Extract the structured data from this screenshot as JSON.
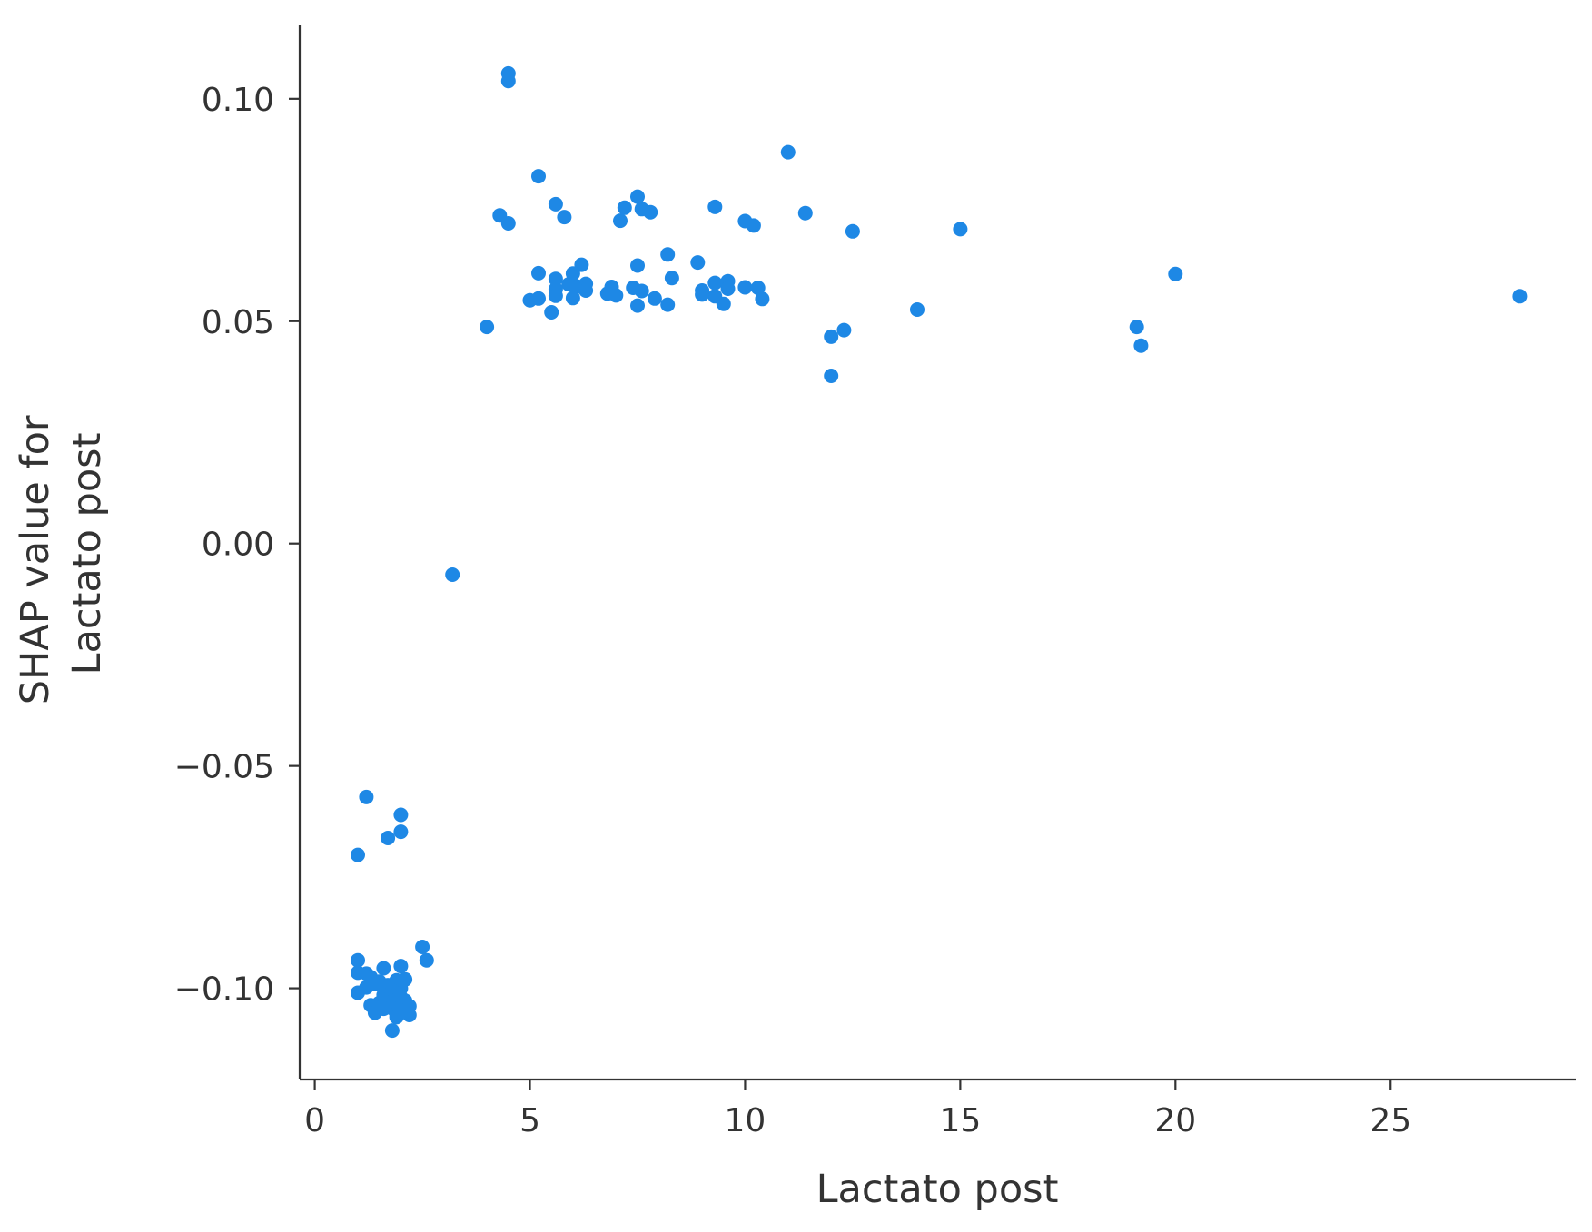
{
  "chart_data": {
    "type": "scatter",
    "xlabel": "Lactato post",
    "ylabel": [
      "SHAP value for",
      "Lactato post"
    ],
    "xlim": [
      -0.35,
      29.3
    ],
    "ylim": [
      -0.1205,
      0.1165
    ],
    "xticks": [
      0,
      5,
      10,
      15,
      20,
      25
    ],
    "xtick_labels": [
      "0",
      "5",
      "10",
      "15",
      "20",
      "25"
    ],
    "yticks": [
      0.1,
      0.05,
      0.0,
      -0.05,
      -0.1
    ],
    "ytick_labels": [
      "0.10",
      "0.05",
      "0.00",
      "−0.05",
      "−0.10"
    ],
    "grid": false,
    "point_color": "#1e88e5",
    "axis_color": "#333333",
    "points": [
      {
        "x": 4.5,
        "y": 0.1057
      },
      {
        "x": 4.5,
        "y": 0.104
      },
      {
        "x": 11.0,
        "y": 0.088
      },
      {
        "x": 5.2,
        "y": 0.0826
      },
      {
        "x": 7.5,
        "y": 0.078
      },
      {
        "x": 5.6,
        "y": 0.0763
      },
      {
        "x": 7.2,
        "y": 0.0755
      },
      {
        "x": 9.3,
        "y": 0.0757
      },
      {
        "x": 7.6,
        "y": 0.0752
      },
      {
        "x": 7.8,
        "y": 0.0745
      },
      {
        "x": 11.4,
        "y": 0.0743
      },
      {
        "x": 4.3,
        "y": 0.0738
      },
      {
        "x": 5.8,
        "y": 0.0734
      },
      {
        "x": 7.1,
        "y": 0.0726
      },
      {
        "x": 10.0,
        "y": 0.0725
      },
      {
        "x": 4.5,
        "y": 0.072
      },
      {
        "x": 10.2,
        "y": 0.0715
      },
      {
        "x": 15.0,
        "y": 0.0707
      },
      {
        "x": 12.5,
        "y": 0.0702
      },
      {
        "x": 8.2,
        "y": 0.065
      },
      {
        "x": 8.9,
        "y": 0.0632
      },
      {
        "x": 6.2,
        "y": 0.0627
      },
      {
        "x": 7.5,
        "y": 0.0625
      },
      {
        "x": 5.2,
        "y": 0.0608
      },
      {
        "x": 6.0,
        "y": 0.0607
      },
      {
        "x": 20.0,
        "y": 0.0606
      },
      {
        "x": 5.6,
        "y": 0.0595
      },
      {
        "x": 8.3,
        "y": 0.0597
      },
      {
        "x": 9.6,
        "y": 0.059
      },
      {
        "x": 9.3,
        "y": 0.0586
      },
      {
        "x": 6.3,
        "y": 0.0584
      },
      {
        "x": 5.9,
        "y": 0.0583
      },
      {
        "x": 6.1,
        "y": 0.0578
      },
      {
        "x": 6.9,
        "y": 0.0577
      },
      {
        "x": 7.4,
        "y": 0.0575
      },
      {
        "x": 10.0,
        "y": 0.0576
      },
      {
        "x": 10.3,
        "y": 0.0575
      },
      {
        "x": 5.6,
        "y": 0.0572
      },
      {
        "x": 9.6,
        "y": 0.0573
      },
      {
        "x": 6.3,
        "y": 0.0569
      },
      {
        "x": 9.0,
        "y": 0.0569
      },
      {
        "x": 7.6,
        "y": 0.0568
      },
      {
        "x": 6.8,
        "y": 0.0562
      },
      {
        "x": 9.0,
        "y": 0.056
      },
      {
        "x": 7.0,
        "y": 0.0558
      },
      {
        "x": 5.6,
        "y": 0.0557
      },
      {
        "x": 28.0,
        "y": 0.0556
      },
      {
        "x": 9.3,
        "y": 0.0556
      },
      {
        "x": 6.0,
        "y": 0.0552
      },
      {
        "x": 7.9,
        "y": 0.0551
      },
      {
        "x": 5.2,
        "y": 0.0551
      },
      {
        "x": 10.4,
        "y": 0.055
      },
      {
        "x": 5.0,
        "y": 0.0547
      },
      {
        "x": 9.5,
        "y": 0.0539
      },
      {
        "x": 8.2,
        "y": 0.0537
      },
      {
        "x": 7.5,
        "y": 0.0535
      },
      {
        "x": 14.0,
        "y": 0.0526
      },
      {
        "x": 5.5,
        "y": 0.052
      },
      {
        "x": 4.0,
        "y": 0.0487
      },
      {
        "x": 19.1,
        "y": 0.0487
      },
      {
        "x": 12.3,
        "y": 0.048
      },
      {
        "x": 12.0,
        "y": 0.0465
      },
      {
        "x": 19.2,
        "y": 0.0445
      },
      {
        "x": 12.0,
        "y": 0.0377
      },
      {
        "x": 3.2,
        "y": -0.007
      },
      {
        "x": 1.2,
        "y": -0.057
      },
      {
        "x": 2.0,
        "y": -0.061
      },
      {
        "x": 2.0,
        "y": -0.0648
      },
      {
        "x": 1.7,
        "y": -0.0662
      },
      {
        "x": 1.0,
        "y": -0.07
      },
      {
        "x": 2.5,
        "y": -0.0907
      },
      {
        "x": 2.6,
        "y": -0.0937
      },
      {
        "x": 1.0,
        "y": -0.0937
      },
      {
        "x": 2.0,
        "y": -0.095
      },
      {
        "x": 1.6,
        "y": -0.0955
      },
      {
        "x": 1.0,
        "y": -0.0965
      },
      {
        "x": 1.2,
        "y": -0.0967
      },
      {
        "x": 1.3,
        "y": -0.0975
      },
      {
        "x": 2.1,
        "y": -0.098
      },
      {
        "x": 1.9,
        "y": -0.0982
      },
      {
        "x": 1.5,
        "y": -0.0985
      },
      {
        "x": 1.4,
        "y": -0.099
      },
      {
        "x": 1.7,
        "y": -0.0993
      },
      {
        "x": 1.2,
        "y": -0.0998
      },
      {
        "x": 2.0,
        "y": -0.1
      },
      {
        "x": 1.8,
        "y": -0.1005
      },
      {
        "x": 1.0,
        "y": -0.101
      },
      {
        "x": 1.9,
        "y": -0.1012
      },
      {
        "x": 1.6,
        "y": -0.1015
      },
      {
        "x": 2.0,
        "y": -0.102
      },
      {
        "x": 1.7,
        "y": -0.1025
      },
      {
        "x": 2.1,
        "y": -0.1028
      },
      {
        "x": 1.8,
        "y": -0.103
      },
      {
        "x": 1.5,
        "y": -0.1033
      },
      {
        "x": 1.9,
        "y": -0.1036
      },
      {
        "x": 1.3,
        "y": -0.1038
      },
      {
        "x": 2.2,
        "y": -0.104
      },
      {
        "x": 1.4,
        "y": -0.1043
      },
      {
        "x": 1.8,
        "y": -0.1045
      },
      {
        "x": 1.6,
        "y": -0.1046
      },
      {
        "x": 2.1,
        "y": -0.105
      },
      {
        "x": 1.4,
        "y": -0.1055
      },
      {
        "x": 1.9,
        "y": -0.1058
      },
      {
        "x": 2.2,
        "y": -0.106
      },
      {
        "x": 1.9,
        "y": -0.1065
      },
      {
        "x": 1.8,
        "y": -0.1095
      }
    ]
  }
}
